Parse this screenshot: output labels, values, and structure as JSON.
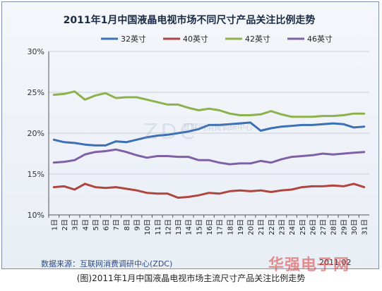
{
  "chart_data": {
    "type": "line",
    "title": "2011年1月中国液晶电视市场不同尺寸产品关注比例走势",
    "categories": [
      "1日",
      "2日",
      "3日",
      "4日",
      "5日",
      "6日",
      "7日",
      "8日",
      "9日",
      "10日",
      "11日",
      "12日",
      "13日",
      "14日",
      "15日",
      "16日",
      "17日",
      "18日",
      "19日",
      "20日",
      "21日",
      "22日",
      "23日",
      "24日",
      "25日",
      "26日",
      "27日",
      "28日",
      "29日",
      "30日",
      "31日"
    ],
    "ylim": [
      10,
      30
    ],
    "yticks": [
      "10%",
      "15%",
      "20%",
      "25%",
      "30%"
    ],
    "grid": true,
    "legend_position": "top",
    "series": [
      {
        "name": "32英寸",
        "color": "#3c6fb4",
        "values": [
          19.2,
          18.9,
          18.8,
          18.6,
          18.5,
          18.5,
          19.0,
          18.9,
          19.2,
          19.5,
          19.7,
          19.8,
          20.0,
          20.2,
          20.5,
          21.0,
          21.0,
          21.1,
          21.2,
          21.3,
          20.3,
          20.6,
          20.8,
          20.9,
          21.0,
          21.0,
          21.1,
          21.2,
          21.1,
          20.7,
          20.8
        ]
      },
      {
        "name": "40英寸",
        "color": "#b0453f",
        "values": [
          13.4,
          13.5,
          13.1,
          13.8,
          13.4,
          13.3,
          13.4,
          13.2,
          13.0,
          12.7,
          12.6,
          12.6,
          12.1,
          12.2,
          12.4,
          12.7,
          12.6,
          12.9,
          13.0,
          12.9,
          13.0,
          12.8,
          13.0,
          13.1,
          13.4,
          13.5,
          13.5,
          13.6,
          13.5,
          13.8,
          13.4
        ]
      },
      {
        "name": "42英寸",
        "color": "#8db14c",
        "values": [
          24.7,
          24.8,
          25.1,
          24.1,
          24.6,
          24.9,
          24.3,
          24.4,
          24.4,
          24.1,
          23.8,
          23.5,
          23.5,
          23.1,
          22.8,
          23.0,
          22.8,
          22.4,
          22.2,
          22.2,
          22.3,
          22.7,
          22.3,
          22.0,
          22.0,
          22.0,
          22.1,
          22.1,
          22.2,
          22.4,
          22.4
        ]
      },
      {
        "name": "46英寸",
        "color": "#7f5fa6",
        "values": [
          16.4,
          16.5,
          16.7,
          17.4,
          17.7,
          17.8,
          18.0,
          17.7,
          17.3,
          17.0,
          17.2,
          17.2,
          17.1,
          17.1,
          16.7,
          16.7,
          16.4,
          16.2,
          16.3,
          16.3,
          16.6,
          16.4,
          16.8,
          17.1,
          17.2,
          17.3,
          17.5,
          17.4,
          17.5,
          17.6,
          17.7
        ]
      }
    ]
  },
  "footer": {
    "source": "数据来源：互联网消费调研中心(ZDC)",
    "date": "2011.02"
  },
  "watermark_zdc": "ZDC",
  "watermark_zdc_sub": "互联网消费调研中心",
  "watermark_site": "华强电子网",
  "caption": "(图)2011年1月中国液晶电视市场主流尺寸产品关注比例走势"
}
